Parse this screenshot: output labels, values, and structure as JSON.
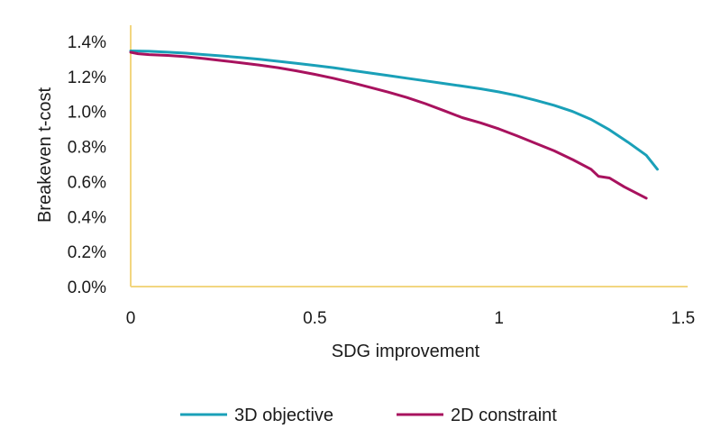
{
  "chart_data": {
    "type": "line",
    "xlabel": "SDG improvement",
    "ylabel": "Breakeven t-cost",
    "xlim": [
      0,
      1.5
    ],
    "ylim": [
      0,
      0.014
    ],
    "x_ticks": [
      0,
      0.5,
      1,
      1.5
    ],
    "x_tick_labels": [
      "0",
      "0.5",
      "1",
      "1.5"
    ],
    "y_ticks": [
      0,
      0.002,
      0.004,
      0.006,
      0.008,
      0.01,
      0.012,
      0.014
    ],
    "y_tick_labels": [
      "0.0%",
      "0.2%",
      "0.4%",
      "0.6%",
      "0.8%",
      "1.0%",
      "1.2%",
      "1.4%"
    ],
    "grid": false,
    "legend_position": "bottom",
    "axis_color": "#f2d680",
    "series": [
      {
        "name": "3D objective",
        "color": "#1aa0b8",
        "points": [
          [
            0.0,
            0.01346
          ],
          [
            0.05,
            0.01344
          ],
          [
            0.1,
            0.01339
          ],
          [
            0.15,
            0.01333
          ],
          [
            0.2,
            0.01325
          ],
          [
            0.25,
            0.01317
          ],
          [
            0.3,
            0.01308
          ],
          [
            0.35,
            0.01298
          ],
          [
            0.4,
            0.01287
          ],
          [
            0.45,
            0.01275
          ],
          [
            0.5,
            0.01263
          ],
          [
            0.55,
            0.0125
          ],
          [
            0.6,
            0.01235
          ],
          [
            0.65,
            0.0122
          ],
          [
            0.7,
            0.01205
          ],
          [
            0.75,
            0.0119
          ],
          [
            0.8,
            0.01175
          ],
          [
            0.85,
            0.0116
          ],
          [
            0.9,
            0.01145
          ],
          [
            0.95,
            0.0113
          ],
          [
            1.0,
            0.01112
          ],
          [
            1.05,
            0.0109
          ],
          [
            1.1,
            0.01064
          ],
          [
            1.15,
            0.01035
          ],
          [
            1.2,
            0.01
          ],
          [
            1.25,
            0.00955
          ],
          [
            1.3,
            0.00895
          ],
          [
            1.35,
            0.00825
          ],
          [
            1.4,
            0.0075
          ],
          [
            1.43,
            0.0067
          ]
        ]
      },
      {
        "name": "2D constraint",
        "color": "#a8125e",
        "points": [
          [
            0.0,
            0.01338
          ],
          [
            0.02,
            0.0133
          ],
          [
            0.05,
            0.01325
          ],
          [
            0.1,
            0.0132
          ],
          [
            0.15,
            0.01313
          ],
          [
            0.2,
            0.01302
          ],
          [
            0.25,
            0.0129
          ],
          [
            0.3,
            0.01278
          ],
          [
            0.35,
            0.01265
          ],
          [
            0.4,
            0.0125
          ],
          [
            0.45,
            0.01232
          ],
          [
            0.5,
            0.01212
          ],
          [
            0.55,
            0.0119
          ],
          [
            0.6,
            0.01165
          ],
          [
            0.65,
            0.01138
          ],
          [
            0.7,
            0.0111
          ],
          [
            0.75,
            0.0108
          ],
          [
            0.8,
            0.01045
          ],
          [
            0.85,
            0.01005
          ],
          [
            0.9,
            0.00965
          ],
          [
            0.95,
            0.00935
          ],
          [
            1.0,
            0.009
          ],
          [
            1.05,
            0.0086
          ],
          [
            1.1,
            0.00818
          ],
          [
            1.15,
            0.00775
          ],
          [
            1.2,
            0.00725
          ],
          [
            1.25,
            0.0067
          ],
          [
            1.27,
            0.0063
          ],
          [
            1.3,
            0.0062
          ],
          [
            1.34,
            0.0057
          ],
          [
            1.4,
            0.00505
          ]
        ]
      }
    ]
  }
}
